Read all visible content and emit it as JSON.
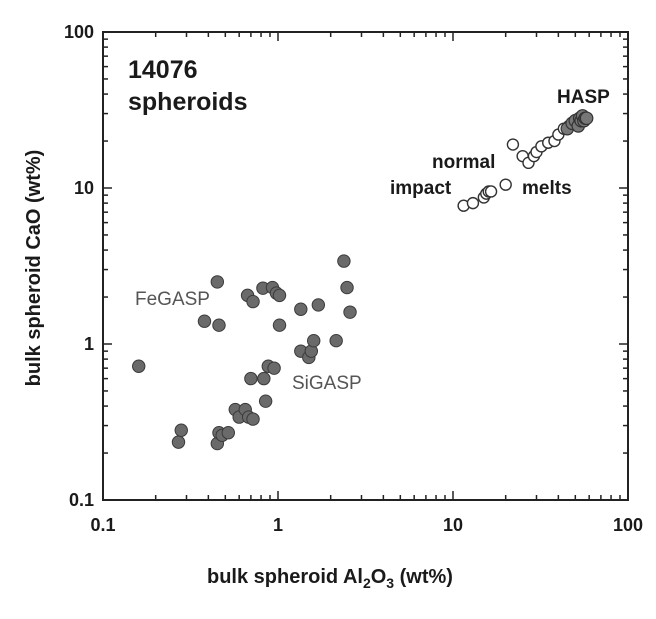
{
  "chart_data": {
    "type": "scatter",
    "title": "14076",
    "subtitle": "spheroids",
    "xlabel": {
      "pre": "bulk spheroid Al",
      "sub1": "2",
      "mid": "O",
      "sub2": "3",
      "post": " (wt%)"
    },
    "ylabel": "bulk spheroid CaO (wt%)",
    "xscale": "log",
    "yscale": "log",
    "xlim": [
      0.1,
      100
    ],
    "ylim": [
      0.1,
      100
    ],
    "x_ticks": [
      0.1,
      1,
      10,
      100
    ],
    "x_tick_labels": [
      "0.1",
      "1",
      "10",
      "100"
    ],
    "y_ticks": [
      0.1,
      1,
      10,
      100
    ],
    "y_tick_labels": [
      "0.1",
      "1",
      "10",
      "100"
    ],
    "grid": false,
    "annotations": {
      "hasp": "HASP",
      "normal": "normal",
      "impact": "impact",
      "melts": "melts",
      "fegasp": "FeGASP",
      "sigasp": "SiGASP"
    },
    "series": [
      {
        "name": "FeGASP",
        "marker": "filled",
        "x": [
          0.16,
          0.38,
          0.45,
          0.46,
          0.67,
          0.72,
          0.82,
          0.93,
          0.98,
          1.02,
          1.35,
          1.7,
          2.38,
          2.48,
          2.58
        ],
        "y": [
          0.72,
          1.4,
          2.5,
          1.32,
          2.05,
          1.87,
          2.28,
          2.3,
          2.12,
          2.05,
          1.67,
          1.78,
          3.4,
          2.3,
          1.6
        ]
      },
      {
        "name": "SiGASP",
        "marker": "filled",
        "x": [
          0.27,
          0.28,
          0.45,
          0.46,
          0.48,
          0.52,
          0.57,
          0.6,
          0.65,
          0.68,
          0.7,
          0.72,
          0.83,
          0.85,
          0.88,
          0.95,
          1.02,
          1.35,
          1.5,
          1.55,
          1.6,
          2.15
        ],
        "y": [
          0.235,
          0.28,
          0.23,
          0.27,
          0.26,
          0.27,
          0.38,
          0.34,
          0.38,
          0.34,
          0.6,
          0.33,
          0.6,
          0.43,
          0.72,
          0.7,
          1.32,
          0.9,
          0.82,
          0.9,
          1.05,
          1.05
        ]
      },
      {
        "name": "normal impact melts",
        "marker": "open",
        "x": [
          11.5,
          13,
          15,
          15.5,
          16,
          16.5,
          20,
          22,
          25,
          27,
          29,
          30,
          32,
          35,
          38,
          40,
          43,
          46,
          48
        ],
        "y": [
          7.7,
          8,
          8.7,
          9.2,
          9.5,
          9.5,
          10.5,
          19,
          16,
          14.5,
          16,
          17,
          18.5,
          19.5,
          20,
          22,
          24,
          25,
          26
        ]
      },
      {
        "name": "HASP",
        "marker": "filled",
        "x": [
          45,
          48,
          50,
          52,
          53,
          54,
          55,
          56,
          57,
          58
        ],
        "y": [
          24,
          26,
          27,
          25,
          28,
          27,
          29,
          27,
          28,
          28
        ]
      }
    ]
  }
}
